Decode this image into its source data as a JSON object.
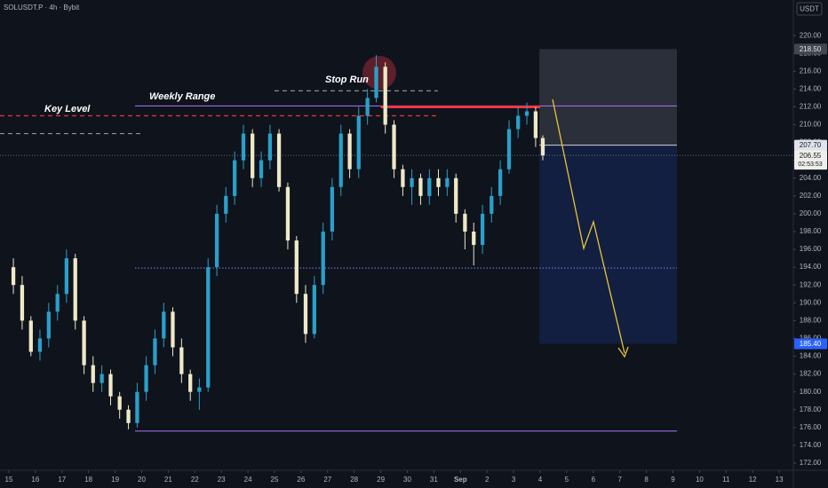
{
  "chart_data": {
    "type": "candlestick",
    "symbol": "SOLUSDT.P · 4h · Bybit",
    "currency": "USDT",
    "up_color": "#2a9fc9",
    "down_color": "#eee9c6",
    "x": [
      0.17,
      0.5,
      0.83,
      1.17,
      1.5,
      1.83,
      2.17,
      2.5,
      2.83,
      3.17,
      3.5,
      3.83,
      4.17,
      4.5,
      4.83,
      5.17,
      5.5,
      5.83,
      6.17,
      6.5,
      6.83,
      7.17,
      7.5,
      7.83,
      8.17,
      8.5,
      8.83,
      9.17,
      9.5,
      9.83,
      10.17,
      10.5,
      10.83,
      11.17,
      11.5,
      11.83,
      12.17,
      12.5,
      12.83,
      13.17,
      13.5,
      13.83,
      14.17,
      14.5,
      14.83,
      15.17,
      15.5,
      15.83,
      16.17,
      16.5,
      16.83,
      17.17,
      17.5,
      17.83,
      18.17,
      18.5,
      18.83,
      19.17,
      19.5,
      19.83,
      20.1
    ],
    "open": [
      194,
      192,
      188,
      184.5,
      186,
      189,
      191,
      195,
      188,
      183,
      181,
      182,
      179.5,
      178,
      176.5,
      180,
      183,
      186,
      189,
      185,
      182,
      180,
      180.5,
      194,
      200,
      202,
      206,
      209,
      204,
      206,
      209,
      203,
      197,
      191,
      186.5,
      192,
      198,
      203,
      209,
      205,
      211,
      213,
      216.5,
      210,
      205,
      203,
      204,
      202,
      204,
      203,
      204,
      200,
      198,
      196.5,
      200,
      202,
      205,
      209.5,
      211,
      211.5,
      208.5
    ],
    "close": [
      192,
      188,
      184.5,
      186,
      189,
      191,
      195,
      188,
      183,
      181,
      182,
      179.5,
      178,
      176.5,
      180,
      183,
      186,
      189,
      185,
      182,
      180,
      180.5,
      194,
      200,
      202,
      206,
      209,
      204,
      206,
      209,
      203,
      197,
      191,
      186.5,
      192,
      198,
      203,
      209,
      205,
      211,
      213,
      216.5,
      210,
      205,
      203,
      204,
      202,
      204,
      203,
      204,
      200,
      198,
      196.5,
      200,
      202,
      205,
      209.5,
      211,
      211.5,
      208.5,
      206.55
    ],
    "high": [
      195,
      193,
      188.5,
      187,
      190,
      192,
      196,
      195.5,
      188.5,
      184,
      183,
      182.5,
      180,
      178.5,
      181,
      184,
      187,
      190,
      189.5,
      186,
      182.5,
      181.5,
      195,
      201,
      203,
      207,
      210,
      209.5,
      207,
      210,
      209.5,
      203.5,
      197.5,
      192,
      193,
      199,
      204,
      210,
      209.5,
      212,
      214,
      217.8,
      217,
      210.5,
      205.5,
      205,
      204.5,
      205,
      205,
      205,
      204.5,
      200.5,
      199,
      201,
      203,
      206,
      210.5,
      212,
      212.5,
      212,
      208.8
    ],
    "low": [
      191,
      187,
      184,
      183.5,
      185,
      188,
      190,
      187,
      182,
      180,
      180,
      178.5,
      177,
      175.8,
      176,
      179,
      182,
      185,
      184,
      181,
      179,
      178,
      180,
      193,
      199,
      201,
      205,
      203,
      203,
      205,
      202.5,
      196,
      190,
      185.5,
      186,
      191,
      197,
      202,
      204,
      204,
      210,
      212.5,
      209,
      204,
      202,
      201,
      201,
      201,
      202,
      202,
      199,
      196,
      194.2,
      195.5,
      199,
      201,
      204.5,
      208.5,
      210,
      207.5,
      206
    ],
    "xlim": [
      -0.334,
      29.532
    ],
    "xticks": [
      {
        "value": 0,
        "label": "15"
      },
      {
        "value": 1,
        "label": "16"
      },
      {
        "value": 2,
        "label": "17"
      },
      {
        "value": 3,
        "label": "18"
      },
      {
        "value": 4,
        "label": "19"
      },
      {
        "value": 5,
        "label": "20"
      },
      {
        "value": 6,
        "label": "21"
      },
      {
        "value": 7,
        "label": "22"
      },
      {
        "value": 8,
        "label": "23"
      },
      {
        "value": 9,
        "label": "24"
      },
      {
        "value": 10,
        "label": "25"
      },
      {
        "value": 11,
        "label": "26"
      },
      {
        "value": 12,
        "label": "27"
      },
      {
        "value": 13,
        "label": "28"
      },
      {
        "value": 14,
        "label": "29"
      },
      {
        "value": 15,
        "label": "30"
      },
      {
        "value": 16,
        "label": "31"
      },
      {
        "value": 17,
        "label": "Sep"
      },
      {
        "value": 18,
        "label": "2"
      },
      {
        "value": 19,
        "label": "3"
      },
      {
        "value": 20,
        "label": "4"
      },
      {
        "value": 21,
        "label": "5"
      },
      {
        "value": 22,
        "label": "6"
      },
      {
        "value": 23,
        "label": "7"
      },
      {
        "value": 24,
        "label": "8"
      },
      {
        "value": 25,
        "label": "9"
      },
      {
        "value": 26,
        "label": "10"
      },
      {
        "value": 27,
        "label": "11"
      },
      {
        "value": 28,
        "label": "12"
      },
      {
        "value": 29,
        "label": "13"
      }
    ],
    "ylim": [
      171.2,
      224.0
    ],
    "yticks": [
      {
        "value": 172,
        "label": "172.00"
      },
      {
        "value": 174,
        "label": "174.00"
      },
      {
        "value": 176,
        "label": "176.00"
      },
      {
        "value": 178,
        "label": "178.00"
      },
      {
        "value": 180,
        "label": "180.00"
      },
      {
        "value": 182,
        "label": "182.00"
      },
      {
        "value": 184,
        "label": "184.00"
      },
      {
        "value": 186,
        "label": "186.00"
      },
      {
        "value": 188,
        "label": "188.00"
      },
      {
        "value": 190,
        "label": "190.00"
      },
      {
        "value": 192,
        "label": "192.00"
      },
      {
        "value": 194,
        "label": "194.00"
      },
      {
        "value": 196,
        "label": "196.00"
      },
      {
        "value": 198,
        "label": "198.00"
      },
      {
        "value": 200,
        "label": "200.00"
      },
      {
        "value": 202,
        "label": "202.00"
      },
      {
        "value": 204,
        "label": "204.00"
      },
      {
        "value": 206,
        "label": "206.00"
      },
      {
        "value": 208,
        "label": "208.00"
      },
      {
        "value": 210,
        "label": "210.00"
      },
      {
        "value": 212,
        "label": "212.00"
      },
      {
        "value": 214,
        "label": "214.00"
      },
      {
        "value": 216,
        "label": "216.00"
      },
      {
        "value": 218,
        "label": "218.00"
      },
      {
        "value": 220,
        "label": "220.00"
      }
    ],
    "levels": [
      {
        "value": 212.1,
        "x": [
          4.75,
          25.15
        ],
        "color": "#9c6ade",
        "style": "solid"
      },
      {
        "value": 175.6,
        "x": [
          4.75,
          25.15
        ],
        "color": "#9c6ade",
        "style": "solid"
      },
      {
        "value": 211.0,
        "x": [
          -0.334,
          16.2
        ],
        "color": "#e53935",
        "style": "dashed"
      },
      {
        "value": 212.0,
        "x": [
          14.0,
          20.0
        ],
        "color": "#f23645",
        "style": "thick"
      },
      {
        "value": 209.0,
        "x": [
          -0.334,
          5.0
        ],
        "color": "#8a8f9a",
        "style": "dashed"
      },
      {
        "value": 213.8,
        "x": [
          10.0,
          16.15
        ],
        "color": "#8a8f9a",
        "style": "dashed"
      },
      {
        "value": 193.9,
        "x": [
          4.75,
          25.15
        ],
        "color": "#5b6fd6",
        "style": "dotted"
      }
    ],
    "annotations": [
      "Key Level",
      "Weekly Range",
      "Stop Run"
    ],
    "position": {
      "x": [
        19.97,
        25.15
      ],
      "stop": {
        "value": 218.5,
        "label": "218.50"
      },
      "entry": {
        "value": 207.7,
        "label": "207.70"
      },
      "target": {
        "value": 185.4,
        "label": "185.40"
      }
    },
    "last_price": 206.55,
    "countdown": "02:53:53"
  }
}
